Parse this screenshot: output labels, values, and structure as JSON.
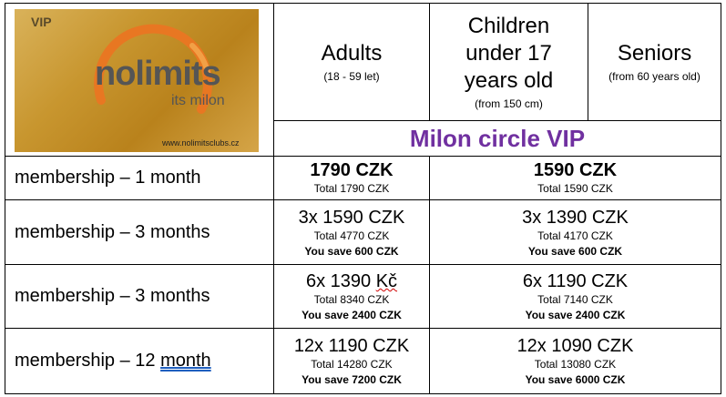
{
  "logo": {
    "badge": "VIP",
    "brand": "nolimits",
    "tagline": "its milon",
    "url": "www.nolimitsclubs.cz",
    "colors": {
      "ring": "#e87722",
      "brand": "#5a5a5a",
      "gold": "#c8962f"
    }
  },
  "header": {
    "adults": {
      "title": "Adults",
      "subtitle": "(18 - 59 let)"
    },
    "children": {
      "title_line1": "Children",
      "title_line2": "under 17",
      "title_line3": "years old",
      "subtitle": "(from 150 cm)"
    },
    "seniors": {
      "title": "Seniors",
      "subtitle": "(from 60 years old)"
    },
    "product": "Milon circle VIP",
    "accent_color": "#7030a0"
  },
  "rows": [
    {
      "label": "membership – 1 month",
      "adult": {
        "price": "1790 CZK",
        "total": "Total 1790 CZK",
        "save": ""
      },
      "other": {
        "price": "1590 CZK",
        "total": "Total 1590 CZK",
        "save": ""
      }
    },
    {
      "label": "membership – 3 months",
      "adult": {
        "price": "3x 1590 CZK",
        "total": "Total 4770 CZK",
        "save": "You save 600 CZK"
      },
      "other": {
        "price": "3x 1390 CZK",
        "total": "Total 4170 CZK",
        "save": "You save 600 CZK"
      }
    },
    {
      "label": "membership – 3 months",
      "adult": {
        "price_prefix": "6x 1390 ",
        "price_unit": "Kč",
        "total": "Total 8340 CZK",
        "save": "You save 2400 CZK"
      },
      "other": {
        "price": "6x 1190 CZK",
        "total": "Total 7140 CZK",
        "save": "You save 2400 CZK"
      }
    },
    {
      "label_prefix": "membership – 12 ",
      "label_suffix": "month",
      "adult": {
        "price": "12x 1190 CZK",
        "total": "Total 14280 CZK",
        "save": "You save 7200 CZK"
      },
      "other": {
        "price": "12x 1090 CZK",
        "total": "Total 13080 CZK",
        "save": "You save 6000 CZK"
      }
    }
  ]
}
